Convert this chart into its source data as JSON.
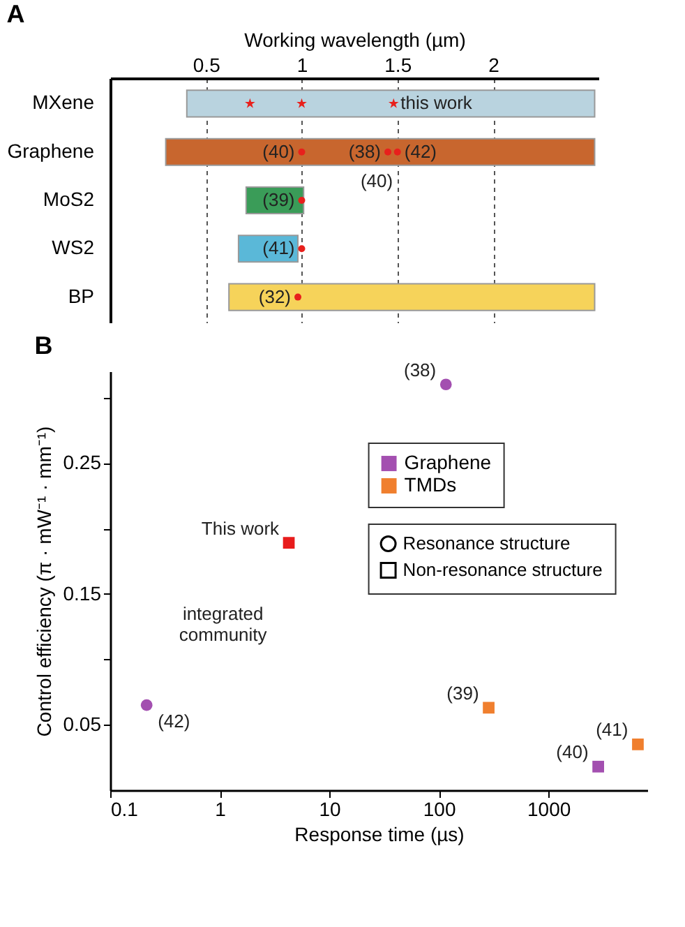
{
  "chart_data": [
    {
      "type": "bar",
      "title": "A",
      "xlabel": "Working wavelength (µm)",
      "orientation": "horizontal",
      "categories": [
        "MXene",
        "Graphene",
        "MoS2",
        "WS2",
        "BP"
      ],
      "base": [
        0.4,
        0.29,
        0.71,
        0.67,
        0.62
      ],
      "values": [
        2.13,
        2.24,
        0.3,
        0.31,
        1.91
      ],
      "colors": [
        "#b9d3df",
        "#c8662e",
        "#3a9c58",
        "#5ab8d8",
        "#f6d35a"
      ],
      "series": [
        {
          "type": "scatter",
          "color": "#e8201c",
          "marker": "star",
          "x": [
            "MXene",
            "MXene",
            "MXene"
          ],
          "values": [
            0.73,
            1.0,
            1.48
          ]
        },
        {
          "type": "scatter",
          "color": "#e8201c",
          "marker": "circle",
          "x": [
            "Graphene",
            "Graphene",
            "Graphene",
            "MoS2",
            "WS2",
            "BP"
          ],
          "values": [
            1.0,
            1.45,
            1.5,
            1.0,
            1.0,
            0.98
          ]
        }
      ],
      "annotations": [
        {
          "text": "this work",
          "x": 1.48,
          "y": "MXene"
        },
        {
          "text": "(40)",
          "x": 1.0,
          "y": "Graphene"
        },
        {
          "text": "(38)",
          "x": 1.45,
          "y": "Graphene"
        },
        {
          "text": "(42)",
          "x": 1.5,
          "y": "Graphene"
        },
        {
          "text": "(40)",
          "x": 1.45,
          "y": "Graphene"
        },
        {
          "text": "(39)",
          "x": 1.0,
          "y": "MoS2"
        },
        {
          "text": "(41)",
          "x": 1.0,
          "y": "WS2"
        },
        {
          "text": "(32)",
          "x": 0.98,
          "y": "BP"
        }
      ],
      "xlim": [
        0,
        2.55
      ],
      "xticks": [
        0.5,
        1,
        1.5,
        2
      ],
      "grid": "x"
    },
    {
      "type": "scatter",
      "title": "B",
      "xlabel": "Response time (µs)",
      "ylabel": "Control efficiency (π · mW⁻¹ · mm⁻¹)",
      "log": "x",
      "xlim": [
        0.1,
        8000
      ],
      "xticks": [
        0.1,
        1,
        10,
        100,
        1000
      ],
      "ylim": [
        0,
        0.32
      ],
      "yticks": [
        {
          "value": 0.05,
          "label": "0.05"
        },
        {
          "value": 0.1,
          "label": null
        },
        {
          "value": 0.15,
          "label": "0.15"
        },
        {
          "value": 0.2,
          "label": null
        },
        {
          "value": 0.25,
          "label": "0.25"
        },
        {
          "value": 0.3,
          "label": null
        }
      ],
      "legend": "top right",
      "series": [
        {
          "name": "Graphene",
          "color": "#a34fb0",
          "marker": "circle",
          "x": [
            116,
            0.215
          ],
          "values": [
            0.31,
            0.065
          ]
        },
        {
          "color": "#a34fb0",
          "marker": "square",
          "x": [
            2850
          ],
          "values": [
            0.018
          ]
        },
        {
          "name": "TMDs",
          "color": "#f07f2e",
          "marker": "square",
          "x": [
            285,
            6560
          ],
          "values": [
            0.063,
            0.035
          ]
        },
        {
          "color": "#e81c1c",
          "marker": "square",
          "x": [
            4.27
          ],
          "values": [
            0.189
          ]
        }
      ],
      "annotations": [
        "Resonance structure",
        "Non-resonance structure",
        "integrated\ncommunity",
        {
          "text": "(38)",
          "x": 116,
          "y": 0.31
        },
        {
          "text": "(42)",
          "x": 0.215,
          "y": 0.065
        },
        {
          "text": "(40)",
          "x": 2850,
          "y": 0.018
        },
        {
          "text": "(39)",
          "x": 285,
          "y": 0.063
        },
        {
          "text": "(41)",
          "x": 6560,
          "y": 0.035
        },
        {
          "text": "This work",
          "x": 4.27,
          "y": 0.189
        }
      ]
    }
  ]
}
